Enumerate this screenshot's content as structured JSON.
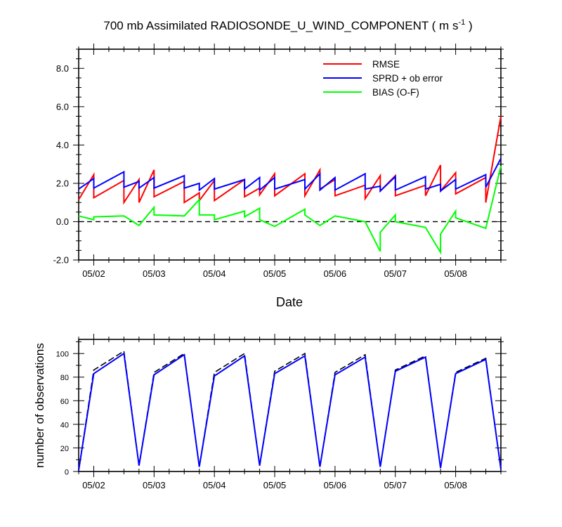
{
  "chart_data": [
    {
      "type": "line",
      "title": "700 mb Assimilated RADIOSONDE_U_WIND_COMPONENT ( m s",
      "title_sup": "-1",
      "title_end": " )",
      "xlabel": "Date",
      "ylabel": "",
      "xlim": [
        0.75,
        7.75
      ],
      "ylim": [
        -2.0,
        9.0
      ],
      "yticks": [
        -2.0,
        0.0,
        2.0,
        4.0,
        6.0,
        8.0
      ],
      "ytick_labels": [
        "-2.0",
        "0.0",
        "2.0",
        "4.0",
        "6.0",
        "8.0"
      ],
      "xticks": [
        1,
        2,
        3,
        4,
        5,
        6,
        7
      ],
      "xtick_labels": [
        "05/02",
        "05/03",
        "05/04",
        "05/05",
        "05/06",
        "05/07",
        "05/08"
      ],
      "legend_position": "top-right",
      "zero_line": "dashed",
      "series": [
        {
          "name": "RMSE",
          "color": "#ff0000",
          "points": [
            [
              0.75,
              1.15
            ],
            [
              1.0,
              2.45
            ],
            [
              1.0,
              1.25
            ],
            [
              1.5,
              2.15
            ],
            [
              1.5,
              1.0
            ],
            [
              1.75,
              2.2
            ],
            [
              1.75,
              1.0
            ],
            [
              2.0,
              2.7
            ],
            [
              2.0,
              1.3
            ],
            [
              2.5,
              2.1
            ],
            [
              2.5,
              1.0
            ],
            [
              2.75,
              1.5
            ],
            [
              2.75,
              1.1
            ],
            [
              3.0,
              2.15
            ],
            [
              3.0,
              1.1
            ],
            [
              3.5,
              2.2
            ],
            [
              3.5,
              1.3
            ],
            [
              3.75,
              1.75
            ],
            [
              3.75,
              1.4
            ],
            [
              4.0,
              2.5
            ],
            [
              4.0,
              1.35
            ],
            [
              4.5,
              2.5
            ],
            [
              4.5,
              1.35
            ],
            [
              4.75,
              2.7
            ],
            [
              4.75,
              1.7
            ],
            [
              5.0,
              2.2
            ],
            [
              5.0,
              1.35
            ],
            [
              5.5,
              1.9
            ],
            [
              5.5,
              1.2
            ],
            [
              5.75,
              2.4
            ],
            [
              5.75,
              1.6
            ],
            [
              6.0,
              2.4
            ],
            [
              6.0,
              1.35
            ],
            [
              6.5,
              1.9
            ],
            [
              6.5,
              1.35
            ],
            [
              6.75,
              2.95
            ],
            [
              6.75,
              1.6
            ],
            [
              7.0,
              2.55
            ],
            [
              7.0,
              1.45
            ],
            [
              7.5,
              2.3
            ],
            [
              7.5,
              1.0
            ],
            [
              7.75,
              5.5
            ]
          ]
        },
        {
          "name": "SPRD + ob error",
          "color": "#0000ff",
          "points": [
            [
              0.75,
              1.7
            ],
            [
              1.0,
              2.25
            ],
            [
              1.0,
              1.75
            ],
            [
              1.5,
              2.6
            ],
            [
              1.5,
              1.8
            ],
            [
              1.75,
              2.1
            ],
            [
              1.75,
              1.75
            ],
            [
              2.0,
              2.3
            ],
            [
              2.0,
              1.75
            ],
            [
              2.5,
              2.4
            ],
            [
              2.5,
              1.75
            ],
            [
              2.75,
              2.0
            ],
            [
              2.75,
              1.65
            ],
            [
              3.0,
              2.25
            ],
            [
              3.0,
              1.7
            ],
            [
              3.5,
              2.2
            ],
            [
              3.5,
              1.7
            ],
            [
              3.75,
              2.3
            ],
            [
              3.75,
              1.65
            ],
            [
              4.0,
              2.3
            ],
            [
              4.0,
              1.7
            ],
            [
              4.5,
              2.2
            ],
            [
              4.5,
              1.7
            ],
            [
              4.75,
              2.5
            ],
            [
              4.75,
              1.65
            ],
            [
              5.0,
              2.3
            ],
            [
              5.0,
              1.65
            ],
            [
              5.5,
              2.5
            ],
            [
              5.5,
              1.7
            ],
            [
              5.75,
              1.85
            ],
            [
              5.75,
              1.6
            ],
            [
              6.0,
              2.35
            ],
            [
              6.0,
              1.65
            ],
            [
              6.5,
              2.35
            ],
            [
              6.5,
              1.7
            ],
            [
              6.75,
              1.95
            ],
            [
              6.75,
              1.6
            ],
            [
              7.0,
              2.2
            ],
            [
              7.0,
              1.7
            ],
            [
              7.5,
              2.45
            ],
            [
              7.5,
              1.8
            ],
            [
              7.75,
              3.3
            ]
          ]
        },
        {
          "name": "BIAS (O-F)",
          "color": "#00ff00",
          "points": [
            [
              0.75,
              0.3
            ],
            [
              1.0,
              0.1
            ],
            [
              1.0,
              0.25
            ],
            [
              1.5,
              0.3
            ],
            [
              1.75,
              -0.2
            ],
            [
              2.0,
              0.75
            ],
            [
              2.0,
              0.35
            ],
            [
              2.5,
              0.3
            ],
            [
              2.75,
              1.15
            ],
            [
              2.75,
              0.35
            ],
            [
              3.0,
              0.35
            ],
            [
              3.0,
              0.1
            ],
            [
              3.5,
              0.55
            ],
            [
              3.5,
              0.25
            ],
            [
              3.75,
              0.7
            ],
            [
              3.75,
              0.1
            ],
            [
              4.0,
              -0.25
            ],
            [
              4.5,
              0.65
            ],
            [
              4.5,
              0.35
            ],
            [
              4.75,
              -0.2
            ],
            [
              5.0,
              0.3
            ],
            [
              5.5,
              0.0
            ],
            [
              5.75,
              -1.55
            ],
            [
              5.75,
              -0.55
            ],
            [
              6.0,
              0.35
            ],
            [
              6.0,
              0.0
            ],
            [
              6.5,
              -0.3
            ],
            [
              6.75,
              -1.6
            ],
            [
              6.75,
              -0.65
            ],
            [
              7.0,
              0.55
            ],
            [
              7.0,
              0.2
            ],
            [
              7.5,
              -0.35
            ],
            [
              7.75,
              2.9
            ]
          ]
        }
      ]
    },
    {
      "type": "line",
      "title": "",
      "xlabel": "",
      "ylabel": "number of observations",
      "xlim": [
        0.75,
        7.75
      ],
      "ylim": [
        0,
        112
      ],
      "yticks": [
        0,
        20,
        40,
        60,
        80,
        100
      ],
      "ytick_labels": [
        "0",
        "20",
        "40",
        "60",
        "80",
        "100"
      ],
      "xticks": [
        1,
        2,
        3,
        4,
        5,
        6,
        7
      ],
      "xtick_labels": [
        "05/02",
        "05/03",
        "05/04",
        "05/05",
        "05/06",
        "05/07",
        "05/08"
      ],
      "series": [
        {
          "style": "dashed",
          "color": "#000000",
          "points": [
            [
              0.75,
              1
            ],
            [
              1.0,
              86
            ],
            [
              1.5,
              102
            ],
            [
              1.75,
              5
            ],
            [
              2.0,
              84
            ],
            [
              2.5,
              100
            ],
            [
              2.75,
              4
            ],
            [
              3.0,
              84
            ],
            [
              3.5,
              100
            ],
            [
              3.75,
              5
            ],
            [
              4.0,
              85
            ],
            [
              4.5,
              100
            ],
            [
              4.75,
              4
            ],
            [
              5.0,
              84
            ],
            [
              5.5,
              99
            ],
            [
              5.75,
              4
            ],
            [
              6.0,
              86
            ],
            [
              6.5,
              98
            ],
            [
              6.75,
              3
            ],
            [
              7.0,
              84
            ],
            [
              7.5,
              96
            ],
            [
              7.75,
              2
            ]
          ]
        },
        {
          "style": "solid",
          "color": "#0000ff",
          "points": [
            [
              0.75,
              1
            ],
            [
              1.0,
              83
            ],
            [
              1.5,
              100
            ],
            [
              1.75,
              5
            ],
            [
              2.0,
              82
            ],
            [
              2.5,
              99
            ],
            [
              2.75,
              4
            ],
            [
              3.0,
              81
            ],
            [
              3.5,
              98
            ],
            [
              3.75,
              5
            ],
            [
              4.0,
              83
            ],
            [
              4.5,
              98
            ],
            [
              4.75,
              4
            ],
            [
              5.0,
              82
            ],
            [
              5.5,
              97
            ],
            [
              5.75,
              4
            ],
            [
              6.0,
              85
            ],
            [
              6.5,
              97
            ],
            [
              6.75,
              3
            ],
            [
              7.0,
              83
            ],
            [
              7.5,
              95
            ],
            [
              7.75,
              2
            ]
          ]
        }
      ]
    }
  ]
}
